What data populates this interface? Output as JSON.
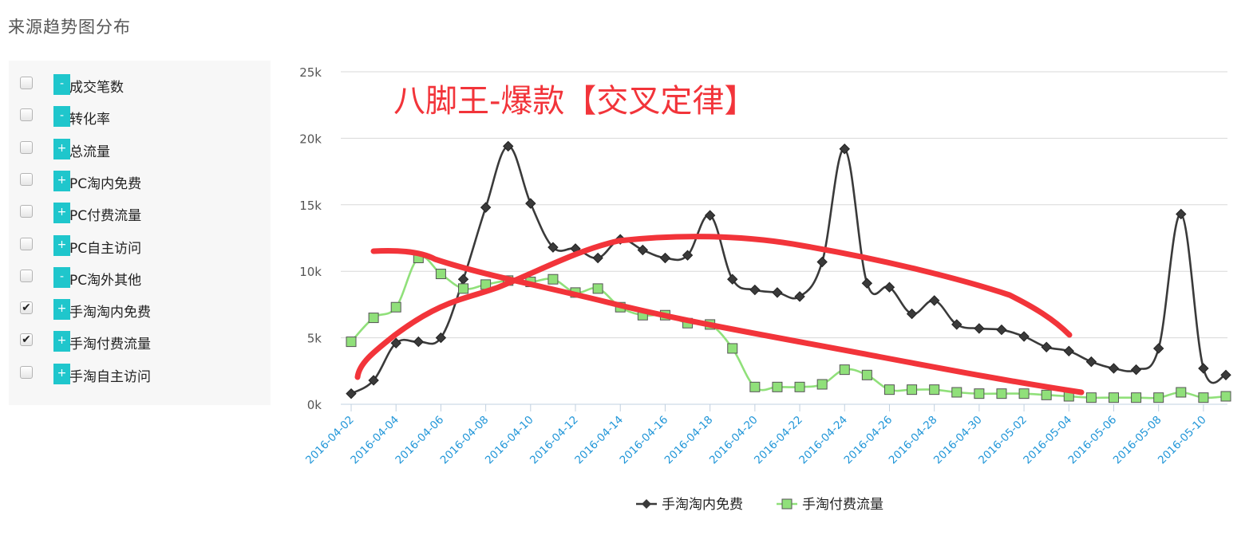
{
  "page": {
    "title": "来源趋势图分布"
  },
  "filters": [
    {
      "label": "成交笔数",
      "checked": false,
      "toggle": "-"
    },
    {
      "label": "转化率",
      "checked": false,
      "toggle": "-"
    },
    {
      "label": "总流量",
      "checked": false,
      "toggle": "+"
    },
    {
      "label": "PC淘内免费",
      "checked": false,
      "toggle": "+"
    },
    {
      "label": "PC付费流量",
      "checked": false,
      "toggle": "+"
    },
    {
      "label": "PC自主访问",
      "checked": false,
      "toggle": "+"
    },
    {
      "label": "PC淘外其他",
      "checked": false,
      "toggle": "-"
    },
    {
      "label": "手淘淘内免费",
      "checked": true,
      "toggle": "+"
    },
    {
      "label": "手淘付费流量",
      "checked": true,
      "toggle": "+"
    },
    {
      "label": "手淘自主访问",
      "checked": false,
      "toggle": "+"
    }
  ],
  "colors": {
    "toggle_bg": "#1fc6cc",
    "series1": "#3a3a3a",
    "series2": "#90e07a",
    "annotation": "#f2343a",
    "xtick": "#2196d8"
  },
  "chart_data": {
    "type": "line",
    "title": "",
    "annotation": "八脚王-爆款【交叉定律】",
    "ylim": [
      0,
      25000
    ],
    "y_ticks": [
      {
        "value": 0,
        "label": "0k"
      },
      {
        "value": 5000,
        "label": "5k"
      },
      {
        "value": 10000,
        "label": "10k"
      },
      {
        "value": 15000,
        "label": "15k"
      },
      {
        "value": 20000,
        "label": "20k"
      },
      {
        "value": 25000,
        "label": "25k"
      }
    ],
    "x": [
      "2016-04-02",
      "2016-04-03",
      "2016-04-04",
      "2016-04-05",
      "2016-04-06",
      "2016-04-07",
      "2016-04-08",
      "2016-04-09",
      "2016-04-10",
      "2016-04-11",
      "2016-04-12",
      "2016-04-13",
      "2016-04-14",
      "2016-04-15",
      "2016-04-16",
      "2016-04-17",
      "2016-04-18",
      "2016-04-19",
      "2016-04-20",
      "2016-04-21",
      "2016-04-22",
      "2016-04-23",
      "2016-04-24",
      "2016-04-25",
      "2016-04-26",
      "2016-04-27",
      "2016-04-28",
      "2016-04-29",
      "2016-04-30",
      "2016-05-01",
      "2016-05-02",
      "2016-05-03",
      "2016-05-04",
      "2016-05-05",
      "2016-05-06",
      "2016-05-07",
      "2016-05-08",
      "2016-05-09",
      "2016-05-10",
      "2016-05-11"
    ],
    "x_tick_labels": [
      "2016-04-02",
      "2016-04-04",
      "2016-04-06",
      "2016-04-08",
      "2016-04-10",
      "2016-04-12",
      "2016-04-14",
      "2016-04-16",
      "2016-04-18",
      "2016-04-20",
      "2016-04-22",
      "2016-04-24",
      "2016-04-26",
      "2016-04-28",
      "2016-04-30",
      "2016-05-02",
      "2016-05-04",
      "2016-05-06",
      "2016-05-08",
      "2016-05-10"
    ],
    "series": [
      {
        "name": "手淘淘内免费",
        "marker": "diamond",
        "values": [
          800,
          1800,
          4600,
          4700,
          5000,
          9400,
          14800,
          19400,
          15100,
          11800,
          11700,
          11000,
          12400,
          11600,
          11000,
          11200,
          14200,
          9400,
          8600,
          8400,
          8100,
          10700,
          19200,
          9100,
          8800,
          6800,
          7800,
          6000,
          5700,
          5600,
          5100,
          4300,
          4000,
          3200,
          2700,
          2600,
          4200,
          14300,
          2700,
          2200
        ]
      },
      {
        "name": "手淘付费流量",
        "marker": "square",
        "values": [
          4700,
          6500,
          7300,
          11000,
          9800,
          8700,
          9000,
          9300,
          9200,
          9400,
          8400,
          8700,
          7300,
          6700,
          6700,
          6100,
          6000,
          4200,
          1300,
          1300,
          1300,
          1500,
          2600,
          2200,
          1100,
          1100,
          1100,
          900,
          800,
          800,
          800,
          700,
          600,
          500,
          500,
          500,
          500,
          900,
          500,
          600
        ]
      }
    ],
    "legend_position": "bottom-center",
    "grid": true
  }
}
